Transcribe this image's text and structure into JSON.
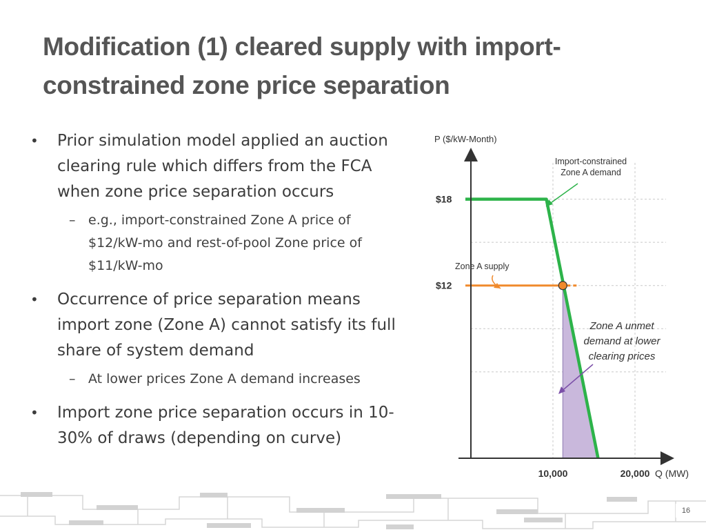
{
  "slide": {
    "title_line1": "Modification (1) cleared supply with import-",
    "title_line2": "constrained zone price separation",
    "page_number": "16",
    "bullets": [
      {
        "lines": [
          "Prior simulation model applied an auction",
          "clearing rule which differs from the FCA",
          "when zone price separation occurs"
        ],
        "subs": [
          {
            "lines": [
              "e.g., import-constrained Zone A price of",
              "$12/kW-mo and rest-of-pool Zone price of",
              "$11/kW-mo"
            ]
          }
        ]
      },
      {
        "lines": [
          "Occurrence of price separation means",
          "import zone (Zone A) cannot satisfy its full",
          "share of system demand"
        ],
        "subs": [
          {
            "lines": [
              "At lower prices Zone A demand increases"
            ]
          }
        ]
      },
      {
        "lines": [
          "Import zone price separation occurs in 10-",
          "30% of draws (depending on curve)"
        ],
        "subs": []
      }
    ]
  },
  "chart_data": {
    "type": "line",
    "ylabel": "P ($/kW-Month)",
    "xlabel": "Q (MW)",
    "x_ticks": [
      10000,
      20000
    ],
    "x_tick_labels": [
      "10,000",
      "20,000"
    ],
    "y_ticks": [
      12,
      18
    ],
    "y_tick_labels": [
      "$12",
      "$18"
    ],
    "xlim": [
      -1500,
      33000
    ],
    "ylim": [
      0,
      21
    ],
    "grid_y": [
      6,
      9,
      12,
      15,
      18
    ],
    "grid_x": [
      10000,
      20000
    ],
    "series": [
      {
        "name": "Import-constrained Zone A demand",
        "color": "#2db34a",
        "points": [
          [
            0,
            18
          ],
          [
            9200,
            18
          ],
          [
            15500,
            0
          ]
        ]
      },
      {
        "name": "Zone A supply",
        "color": "#f08a2c",
        "points": [
          [
            0,
            12
          ],
          [
            12000,
            12
          ]
        ]
      }
    ],
    "intersection": {
      "x": 11200,
      "y": 12,
      "color": "#f08a2c"
    },
    "unmet_region_color": "#c9b8dc",
    "annotations": {
      "demand_label": [
        "Import-constrained",
        "Zone A demand"
      ],
      "supply_label": "Zone A supply",
      "unmet_label": [
        "Zone A unmet",
        "demand at lower",
        "clearing prices"
      ]
    }
  }
}
